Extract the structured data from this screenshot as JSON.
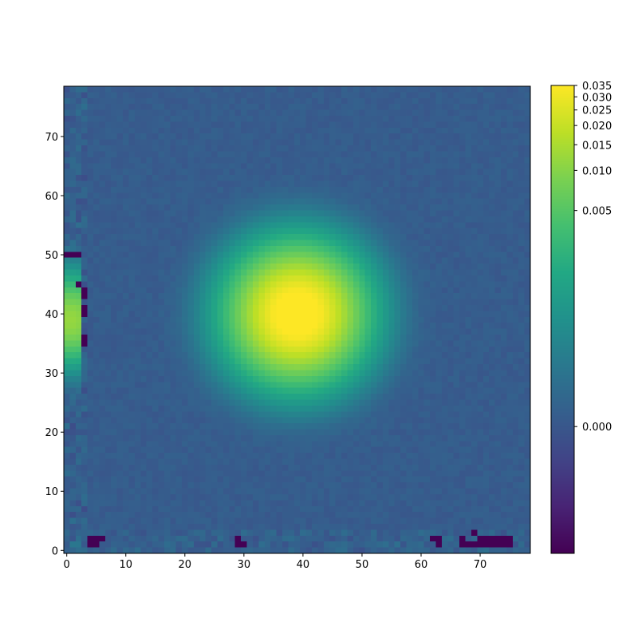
{
  "chart_data": {
    "type": "heatmap",
    "title": "",
    "xlabel": "",
    "ylabel": "",
    "shape": [
      79,
      79
    ],
    "xlim": [
      -0.5,
      78.5
    ],
    "ylim": [
      -0.5,
      78.5
    ],
    "origin": "lower",
    "colormap": "viridis",
    "norm": "power",
    "gamma": 0.16,
    "vmin": -1e-05,
    "vmax": 0.035,
    "x_ticks": [
      0,
      10,
      20,
      30,
      40,
      50,
      60,
      70
    ],
    "y_ticks": [
      0,
      10,
      20,
      30,
      40,
      50,
      60,
      70
    ],
    "colorbar_ticks": [
      0.0,
      0.005,
      0.01,
      0.015,
      0.02,
      0.025,
      0.03,
      0.035
    ],
    "colorbar_tick_labels": [
      "0.000",
      "0.005",
      "0.010",
      "0.015",
      "0.020",
      "0.025",
      "0.030",
      "0.035"
    ],
    "components": {
      "background": 0.0,
      "peak": {
        "x": 39,
        "y": 40,
        "amplitude": 0.045,
        "sigma": 5.2
      },
      "edge_blob": {
        "x": 0,
        "y": 39,
        "amplitude": 0.012,
        "sigma": 3.5
      },
      "negative_pixels": [
        [
          4,
          2
        ],
        [
          5,
          2
        ],
        [
          6,
          2
        ],
        [
          4,
          1
        ],
        [
          5,
          1
        ],
        [
          29,
          2
        ],
        [
          29,
          1
        ],
        [
          30,
          1
        ],
        [
          62,
          2
        ],
        [
          63,
          2
        ],
        [
          63,
          1
        ],
        [
          67,
          1
        ],
        [
          68,
          1
        ],
        [
          69,
          1
        ],
        [
          70,
          1
        ],
        [
          71,
          1
        ],
        [
          72,
          1
        ],
        [
          73,
          1
        ],
        [
          74,
          1
        ],
        [
          75,
          1
        ],
        [
          67,
          2
        ],
        [
          69,
          3
        ],
        [
          70,
          2
        ],
        [
          71,
          2
        ],
        [
          72,
          2
        ],
        [
          73,
          2
        ],
        [
          74,
          2
        ],
        [
          75,
          2
        ],
        [
          3,
          44
        ],
        [
          3,
          43
        ],
        [
          2,
          45
        ],
        [
          3,
          41
        ],
        [
          3,
          40
        ],
        [
          3,
          36
        ],
        [
          3,
          35
        ],
        [
          0,
          50
        ],
        [
          1,
          50
        ],
        [
          2,
          50
        ]
      ]
    }
  }
}
